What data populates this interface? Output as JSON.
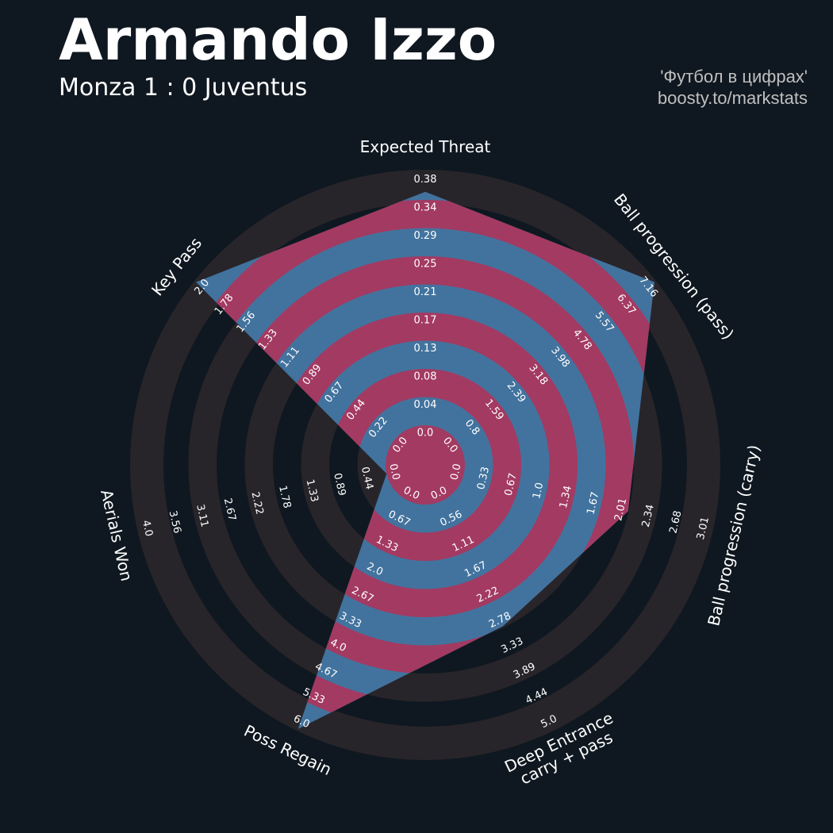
{
  "header": {
    "title": "Armando Izzo",
    "subtitle": "Monza 1 : 0 Juventus",
    "credit_line1": "'Футбол в цифрах'",
    "credit_line2": "boosty.to/markstats"
  },
  "colors": {
    "background": "#0f1820",
    "ring_outer": "#28252a",
    "ring_inner": "#0f1820",
    "ring_a": "#a33a62",
    "ring_b": "#42739e",
    "text": "#ffffff"
  },
  "chart_data": {
    "type": "radar",
    "title": "Armando Izzo",
    "axes": [
      {
        "label": "Expected Threat",
        "ticks": [
          "0.0",
          "0.04",
          "0.08",
          "0.13",
          "0.17",
          "0.21",
          "0.25",
          "0.29",
          "0.34",
          "0.38"
        ],
        "max": 0.38,
        "value": 0.35
      },
      {
        "label": "Ball progression (pass)",
        "ticks": [
          "0.0",
          "0.8",
          "1.59",
          "2.39",
          "3.18",
          "3.98",
          "4.78",
          "5.57",
          "6.37",
          "7.16"
        ],
        "max": 7.16,
        "value": 7.16
      },
      {
        "label": "Ball progression (carry)",
        "ticks": [
          "0.0",
          "0.33",
          "0.67",
          "1.0",
          "1.34",
          "1.67",
          "2.01",
          "2.34",
          "2.68",
          "3.01"
        ],
        "max": 3.01,
        "value": 2.0
      },
      {
        "label": "Deep Entrance\ncarry + pass",
        "ticks": [
          "0.0",
          "0.56",
          "1.11",
          "1.67",
          "2.22",
          "2.78",
          "3.33",
          "3.89",
          "4.44",
          "5.0"
        ],
        "max": 5.0,
        "value": 2.75
      },
      {
        "label": "Poss Regain",
        "ticks": [
          "0.0",
          "0.67",
          "1.33",
          "2.0",
          "2.67",
          "3.33",
          "4.0",
          "4.67",
          "5.33",
          "6.0"
        ],
        "max": 6.0,
        "value": 6.0
      },
      {
        "label": "Aerials Won",
        "ticks": [
          "0.0",
          "0.44",
          "0.89",
          "1.33",
          "1.78",
          "2.22",
          "2.67",
          "3.11",
          "3.56",
          "4.0"
        ],
        "max": 4.0,
        "value": 0.0
      },
      {
        "label": "Key Pass",
        "ticks": [
          "0.0",
          "0.22",
          "0.44",
          "0.67",
          "0.89",
          "1.11",
          "1.33",
          "1.56",
          "1.78",
          "2.0"
        ],
        "max": 2.0,
        "value": 2.0
      }
    ]
  }
}
